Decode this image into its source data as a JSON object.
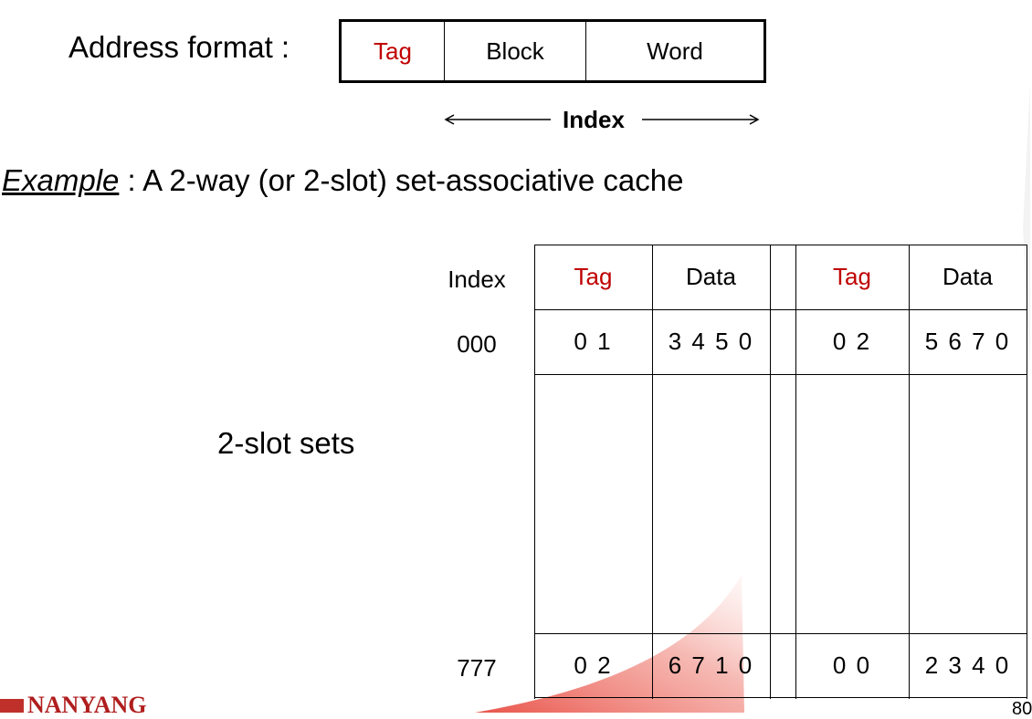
{
  "address_format": {
    "label": "Address format :",
    "fields": {
      "tag": "Tag",
      "block": "Block",
      "word": "Word"
    },
    "index_label": "Index"
  },
  "example": {
    "prefix": "Example",
    "text": " : A 2-way (or 2-slot) set-associative cache"
  },
  "slot_label": "2-slot sets",
  "cache": {
    "index_header": "Index",
    "headers": [
      "Tag",
      "Data",
      "Tag",
      "Data"
    ],
    "rows": [
      {
        "index": "000",
        "tag1": "0 1",
        "data1": "3 4 5 0",
        "tag2": "0 2",
        "data2": "5 6 7 0"
      },
      {
        "index": "777",
        "tag1": "0 2",
        "data1": "6 7 1 0",
        "tag2": "0 0",
        "data2": "2 3 4 0"
      }
    ]
  },
  "footer": {
    "logo_text": "NANYANG",
    "page_number": "80"
  },
  "colors": {
    "tag": "#c00000",
    "swoosh": "#e84a40",
    "logo": "#b01e1e"
  }
}
